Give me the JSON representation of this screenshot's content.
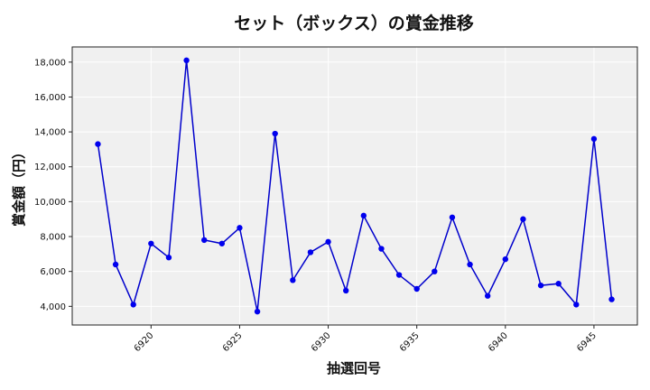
{
  "chart_data": {
    "type": "line",
    "title": "セット（ボックス）の賞金推移",
    "xlabel": "抽選回号",
    "ylabel": "賞金額（円）",
    "x": [
      6917,
      6918,
      6919,
      6920,
      6921,
      6922,
      6923,
      6924,
      6925,
      6926,
      6927,
      6928,
      6929,
      6930,
      6931,
      6932,
      6933,
      6934,
      6935,
      6936,
      6937,
      6938,
      6939,
      6940,
      6941,
      6942,
      6943,
      6944,
      6945,
      6946
    ],
    "series": [
      {
        "values": [
          13300,
          6400,
          4100,
          7600,
          6800,
          18100,
          7800,
          7600,
          8500,
          3700,
          13900,
          5500,
          7100,
          7700,
          4900,
          9200,
          7300,
          5800,
          5000,
          6000,
          9100,
          6400,
          4600,
          6700,
          9000,
          5200,
          5300,
          4100,
          13600,
          4400
        ]
      }
    ],
    "xticks": [
      6920,
      6925,
      6930,
      6935,
      6940,
      6945
    ],
    "xtick_labels": [
      "6920",
      "6925",
      "6930",
      "6935",
      "6940",
      "6945"
    ],
    "yticks": [
      4000,
      6000,
      8000,
      10000,
      12000,
      14000,
      16000,
      18000
    ],
    "ytick_labels": [
      "4,000",
      "6,000",
      "8,000",
      "10,000",
      "12,000",
      "14,000",
      "16,000",
      "18,000"
    ],
    "xlim": [
      6915.55,
      6947.45
    ],
    "ylim": [
      2930,
      18870
    ],
    "grid": true,
    "colors": {
      "line": "#0000cc",
      "marker": "#0000ee",
      "plot_bg": "#f0f0f0",
      "grid": "#ffffff"
    }
  }
}
